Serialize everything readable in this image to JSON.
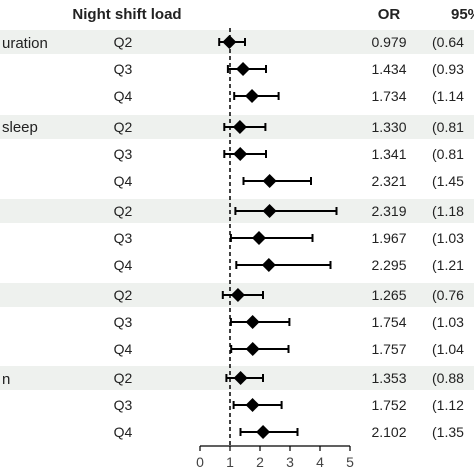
{
  "colors": {
    "band": "#eef1ee",
    "marker": "#000000",
    "text": "#222222",
    "reference_line": "#000000"
  },
  "chart_data": {
    "type": "forest",
    "headers": {
      "group": "Night shift load",
      "or": "OR",
      "ci": "95%"
    },
    "x_axis": {
      "min": 0,
      "max": 5,
      "ticks": [
        "0",
        "1",
        "2",
        "3",
        "4",
        "5"
      ],
      "reference_value": 1,
      "reference_style": "dashed"
    },
    "row_labels": [
      "uration",
      "sleep"
    ],
    "groups": [
      {
        "label_index": 0,
        "rows": [
          {
            "quartile": "Q2",
            "or": 0.979,
            "or_text": "0.979",
            "lo": 0.64,
            "hi": 1.5,
            "ci_text": "(0.64"
          },
          {
            "quartile": "Q3",
            "or": 1.434,
            "or_text": "1.434",
            "lo": 0.93,
            "hi": 2.2,
            "ci_text": "(0.93"
          },
          {
            "quartile": "Q4",
            "or": 1.734,
            "or_text": "1.734",
            "lo": 1.14,
            "hi": 2.62,
            "ci_text": "(1.14"
          }
        ]
      },
      {
        "label_index": 1,
        "rows": [
          {
            "quartile": "Q2",
            "or": 1.33,
            "or_text": "1.330",
            "lo": 0.81,
            "hi": 2.18,
            "ci_text": "(0.81"
          },
          {
            "quartile": "Q3",
            "or": 1.341,
            "or_text": "1.341",
            "lo": 0.81,
            "hi": 2.2,
            "ci_text": "(0.81"
          },
          {
            "quartile": "Q4",
            "or": 2.321,
            "or_text": "2.321",
            "lo": 1.45,
            "hi": 3.7,
            "ci_text": "(1.45"
          }
        ]
      },
      {
        "label_index": null,
        "rows": [
          {
            "quartile": "Q2",
            "or": 2.319,
            "or_text": "2.319",
            "lo": 1.18,
            "hi": 4.55,
            "ci_text": "(1.18"
          },
          {
            "quartile": "Q3",
            "or": 1.967,
            "or_text": "1.967",
            "lo": 1.03,
            "hi": 3.75,
            "ci_text": "(1.03"
          },
          {
            "quartile": "Q4",
            "or": 2.295,
            "or_text": "2.295",
            "lo": 1.21,
            "hi": 4.35,
            "ci_text": "(1.21"
          }
        ]
      },
      {
        "label_index": null,
        "rows": [
          {
            "quartile": "Q2",
            "or": 1.265,
            "or_text": "1.265",
            "lo": 0.76,
            "hi": 2.1,
            "ci_text": "(0.76"
          },
          {
            "quartile": "Q3",
            "or": 1.754,
            "or_text": "1.754",
            "lo": 1.03,
            "hi": 2.98,
            "ci_text": "(1.03"
          },
          {
            "quartile": "Q4",
            "or": 1.757,
            "or_text": "1.757",
            "lo": 1.04,
            "hi": 2.95,
            "ci_text": "(1.04"
          }
        ]
      },
      {
        "label_index": null,
        "row_label_text": "n",
        "rows": [
          {
            "quartile": "Q2",
            "or": 1.353,
            "or_text": "1.353",
            "lo": 0.88,
            "hi": 2.1,
            "ci_text": "(0.88"
          },
          {
            "quartile": "Q3",
            "or": 1.752,
            "or_text": "1.752",
            "lo": 1.12,
            "hi": 2.72,
            "ci_text": "(1.12"
          },
          {
            "quartile": "Q4",
            "or": 2.102,
            "or_text": "2.102",
            "lo": 1.35,
            "hi": 3.25,
            "ci_text": "(1.35"
          }
        ]
      }
    ]
  }
}
